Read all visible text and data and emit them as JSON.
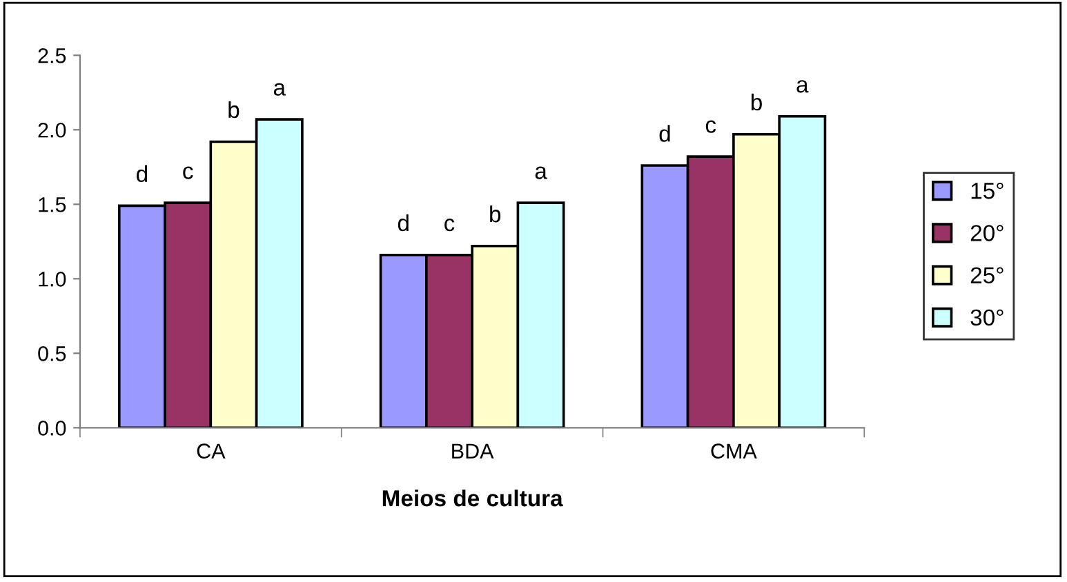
{
  "chart_data": {
    "type": "bar",
    "xlabel": "Meios de cultura",
    "categories": [
      "CA",
      "BDA",
      "CMA"
    ],
    "series": [
      {
        "name": "15°",
        "color": "#9999ff",
        "values": [
          1.49,
          1.16,
          1.76
        ],
        "value_labels": [
          "d",
          "d",
          "d"
        ]
      },
      {
        "name": "20°",
        "color": "#993366",
        "values": [
          1.51,
          1.16,
          1.82
        ],
        "value_labels": [
          "c",
          "c",
          "c"
        ]
      },
      {
        "name": "25°",
        "color": "#ffffcc",
        "values": [
          1.92,
          1.22,
          1.97
        ],
        "value_labels": [
          "b",
          "b",
          "b"
        ]
      },
      {
        "name": "30°",
        "color": "#ccffff",
        "values": [
          2.07,
          1.51,
          2.09
        ],
        "value_labels": [
          "a",
          "a",
          "a"
        ]
      }
    ],
    "ylim": [
      0,
      2.5
    ],
    "yticks": [
      {
        "value": 0,
        "label": "0.0"
      },
      0.5,
      {
        "value": 1,
        "label": "1.0"
      },
      1.5,
      {
        "value": 2,
        "label": "2.0"
      },
      2.5
    ],
    "grid": false,
    "legend": "right"
  }
}
